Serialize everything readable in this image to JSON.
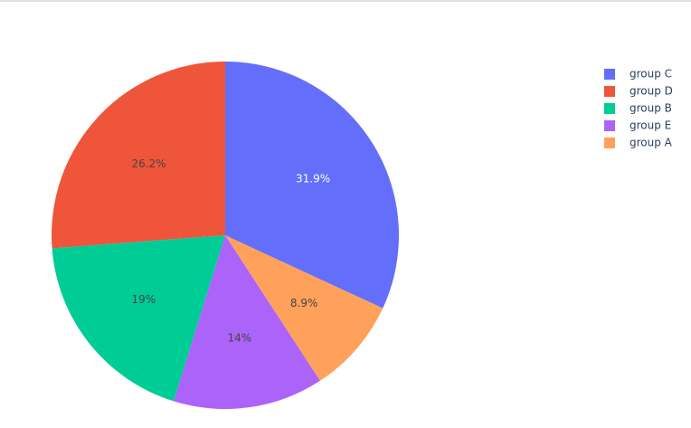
{
  "chart_data": {
    "type": "pie",
    "categories": [
      "group C",
      "group D",
      "group B",
      "group E",
      "group A"
    ],
    "values": [
      31.9,
      26.2,
      19,
      14,
      8.9
    ],
    "value_labels": [
      "31.9%",
      "26.2%",
      "19%",
      "14%",
      "8.9%"
    ],
    "colors": [
      "#636efa",
      "#ef553b",
      "#00cc96",
      "#ab63fa",
      "#ffa15a"
    ],
    "legend": "top-right"
  }
}
